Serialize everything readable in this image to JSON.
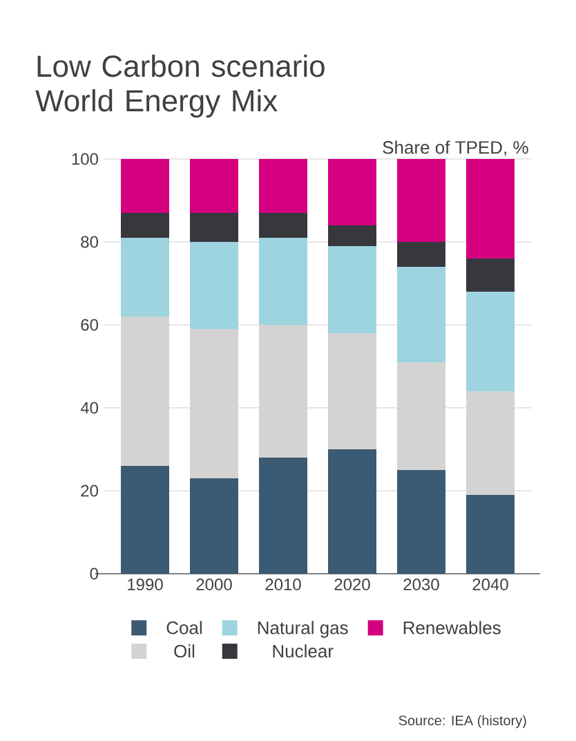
{
  "chart_data": {
    "type": "bar",
    "stacked": true,
    "title": "Low Carbon scenario World Energy Mix",
    "ylabel": "Share of TPED, %",
    "categories": [
      "1990",
      "2000",
      "2010",
      "2020",
      "2030",
      "2040"
    ],
    "series": [
      {
        "name": "Coal",
        "color": "#3b5a73",
        "values": [
          26,
          23,
          28,
          30,
          25,
          19
        ]
      },
      {
        "name": "Oil",
        "color": "#d3d3d3",
        "values": [
          36,
          36,
          32,
          28,
          26,
          25
        ]
      },
      {
        "name": "Natural gas",
        "color": "#9dd4e0",
        "values": [
          19,
          21,
          21,
          21,
          23,
          24
        ]
      },
      {
        "name": "Nuclear",
        "color": "#36383e",
        "values": [
          6,
          7,
          6,
          5,
          6,
          8
        ]
      },
      {
        "name": "Renewables",
        "color": "#d4007f",
        "values": [
          13,
          13,
          13,
          16,
          20,
          24
        ]
      }
    ],
    "ylim": [
      0,
      100
    ],
    "yticks": [
      0,
      20,
      40,
      60,
      80,
      100
    ],
    "grid": "y",
    "legend": "bottom",
    "annotations": [
      "Source: IEA (history)"
    ]
  }
}
